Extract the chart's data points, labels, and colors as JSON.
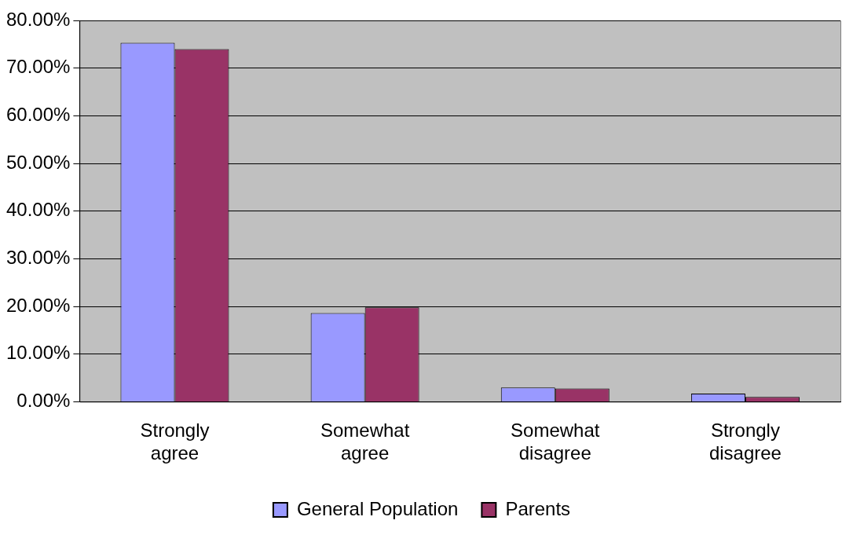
{
  "chart_data": {
    "type": "bar",
    "categories": [
      "Strongly agree",
      "Somewhat agree",
      "Somewhat disagree",
      "Strongly disagree"
    ],
    "series": [
      {
        "name": "General Population",
        "color": "#9999ff",
        "values": [
          75.3,
          18.6,
          3.0,
          1.7
        ]
      },
      {
        "name": "Parents",
        "color": "#993366",
        "values": [
          74.0,
          19.8,
          2.8,
          1.0
        ]
      }
    ],
    "ylim": [
      0,
      80
    ],
    "yticks": [
      {
        "value": 0,
        "label": "0.00%"
      },
      {
        "value": 10,
        "label": "10.00%"
      },
      {
        "value": 20,
        "label": "20.00%"
      },
      {
        "value": 30,
        "label": "30.00%"
      },
      {
        "value": 40,
        "label": "40.00%"
      },
      {
        "value": 50,
        "label": "50.00%"
      },
      {
        "value": 60,
        "label": "60.00%"
      },
      {
        "value": 70,
        "label": "70.00%"
      },
      {
        "value": 80,
        "label": "80.00%"
      }
    ],
    "grid": "y",
    "legend": "bottom"
  }
}
